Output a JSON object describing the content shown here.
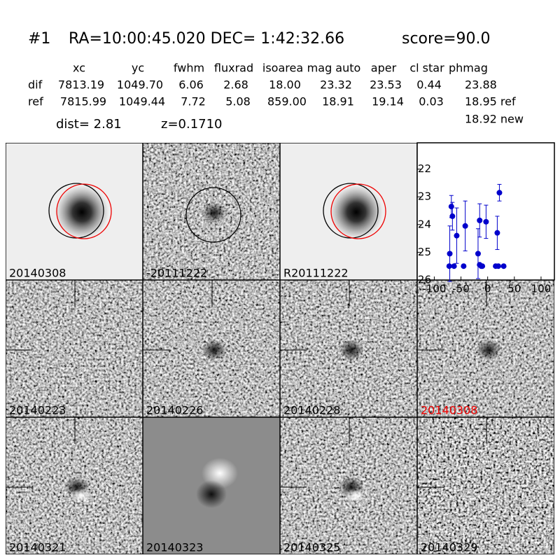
{
  "header": {
    "id": "#1",
    "coords": "RA=10:00:45.020 DEC= 1:42:32.66",
    "score": "score=90.0"
  },
  "table": {
    "columns": [
      "xc",
      "yc",
      "fwhm",
      "fluxrad",
      "isoarea",
      "mag auto",
      "aper",
      "cl star",
      "phmag"
    ],
    "rows": [
      [
        "dif",
        "7813.19",
        "1049.70",
        "6.06",
        "2.68",
        "18.00",
        "23.32",
        "23.53",
        "0.44",
        "23.88"
      ],
      [
        "ref",
        "7815.99",
        "1049.44",
        "7.72",
        "5.08",
        "859.00",
        "18.91",
        "19.14",
        "0.03",
        "18.95 ref"
      ]
    ],
    "extra": "18.92 new",
    "dist": "dist=  2.81",
    "z": "z=0.1710"
  },
  "stamps": [
    "20140308",
    "-20111222",
    "R20111222",
    "20140223",
    "20140226",
    "20140228",
    "20140308",
    "20140321",
    "20140323",
    "20140325",
    "20140329"
  ],
  "chart_data": {
    "type": "scatter",
    "color": "#0000cc",
    "x": [
      -72,
      -71,
      -68,
      -66,
      -63,
      -58,
      -45,
      -42,
      -18,
      -15,
      -15,
      -12,
      -10,
      -3,
      15,
      18,
      20,
      22,
      30
    ],
    "values": [
      25.5,
      25.05,
      23.35,
      23.7,
      25.5,
      24.4,
      25.5,
      24.05,
      25.05,
      25.45,
      23.85,
      25.5,
      25.5,
      23.9,
      25.5,
      24.3,
      25.5,
      22.85,
      25.5
    ],
    "errors": [
      null,
      1.0,
      0.4,
      0.5,
      null,
      1.0,
      null,
      0.9,
      0.9,
      null,
      0.6,
      null,
      null,
      0.6,
      null,
      0.6,
      null,
      0.3,
      null
    ],
    "xlim": [
      -132,
      125
    ],
    "ylim": [
      26,
      21.05
    ],
    "xticks": [
      -100,
      -50,
      0,
      50,
      100
    ],
    "yticks": [
      22,
      23,
      24,
      25,
      26
    ]
  }
}
